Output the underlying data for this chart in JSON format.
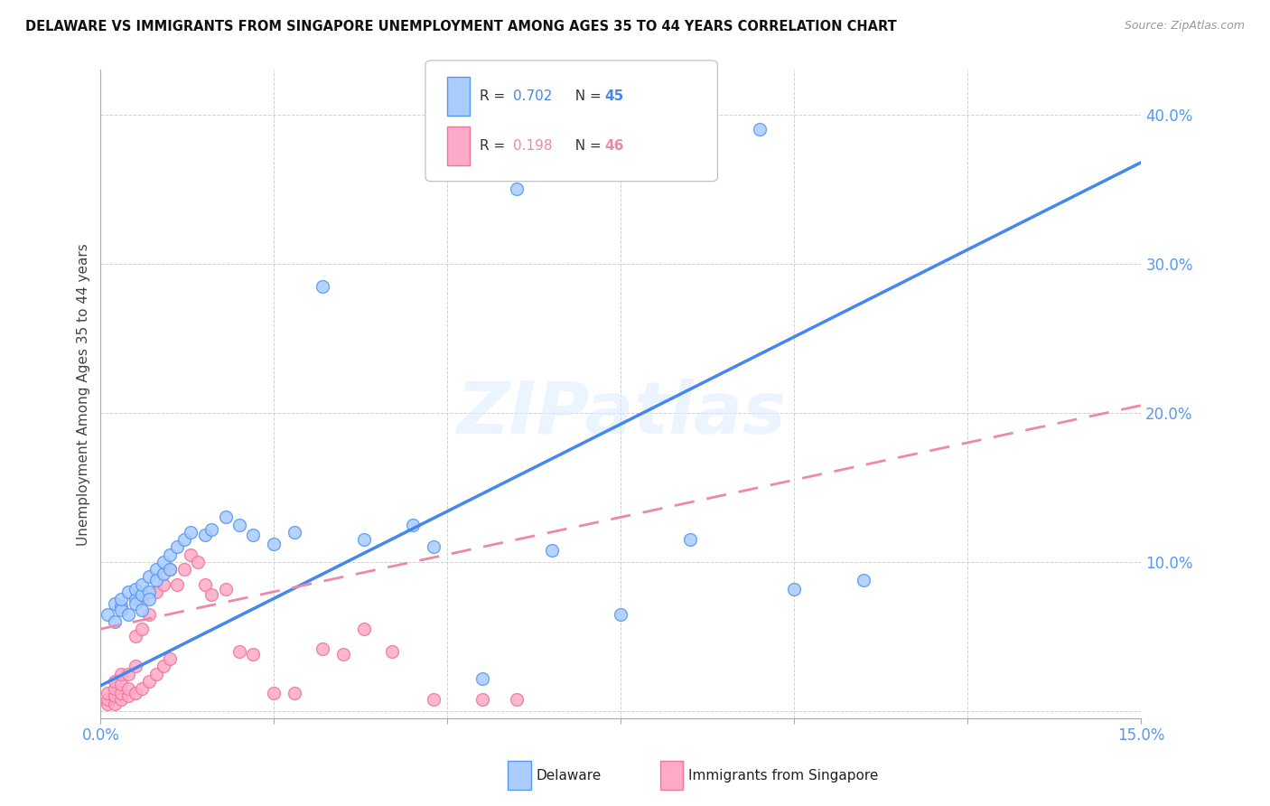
{
  "title": "DELAWARE VS IMMIGRANTS FROM SINGAPORE UNEMPLOYMENT AMONG AGES 35 TO 44 YEARS CORRELATION CHART",
  "source": "Source: ZipAtlas.com",
  "ylabel": "Unemployment Among Ages 35 to 44 years",
  "xlim": [
    0.0,
    0.15
  ],
  "ylim": [
    -0.005,
    0.43
  ],
  "yticks": [
    0.0,
    0.1,
    0.2,
    0.3,
    0.4
  ],
  "ytick_labels": [
    "",
    "10.0%",
    "20.0%",
    "30.0%",
    "40.0%"
  ],
  "xticks": [
    0.0,
    0.025,
    0.05,
    0.075,
    0.1,
    0.125,
    0.15
  ],
  "xtick_labels": [
    "0.0%",
    "",
    "",
    "",
    "",
    "",
    "15.0%"
  ],
  "watermark": "ZIPatlas",
  "delaware_color": "#aaccff",
  "singapore_color": "#ffaac8",
  "delaware_edge_color": "#5599ee",
  "singapore_edge_color": "#ee7799",
  "delaware_line_color": "#4488ee",
  "singapore_line_color": "#ee88aa",
  "tick_color": "#5599ee",
  "legend_r1": "R = ",
  "legend_v1": "0.702",
  "legend_n1_label": "N = ",
  "legend_n1": "45",
  "legend_r2": "R = ",
  "legend_v2": "0.198",
  "legend_n2_label": "N = ",
  "legend_n2": "46",
  "legend_label1": "Delaware",
  "legend_label2": "Immigrants from Singapore",
  "delaware_trend_x": [
    0.0,
    0.15
  ],
  "delaware_trend_y": [
    0.017,
    0.368
  ],
  "singapore_trend_x": [
    0.0,
    0.15
  ],
  "singapore_trend_y": [
    0.055,
    0.205
  ],
  "delaware_scatter_x": [
    0.001,
    0.002,
    0.002,
    0.003,
    0.003,
    0.003,
    0.004,
    0.004,
    0.005,
    0.005,
    0.005,
    0.006,
    0.006,
    0.006,
    0.007,
    0.007,
    0.007,
    0.008,
    0.008,
    0.009,
    0.009,
    0.01,
    0.01,
    0.011,
    0.012,
    0.013,
    0.015,
    0.016,
    0.018,
    0.02,
    0.022,
    0.025,
    0.028,
    0.032,
    0.038,
    0.045,
    0.048,
    0.055,
    0.06,
    0.065,
    0.075,
    0.085,
    0.095,
    0.1,
    0.11
  ],
  "delaware_scatter_y": [
    0.065,
    0.06,
    0.072,
    0.07,
    0.068,
    0.075,
    0.065,
    0.08,
    0.075,
    0.082,
    0.072,
    0.078,
    0.085,
    0.068,
    0.08,
    0.09,
    0.075,
    0.095,
    0.088,
    0.092,
    0.1,
    0.095,
    0.105,
    0.11,
    0.115,
    0.12,
    0.118,
    0.122,
    0.13,
    0.125,
    0.118,
    0.112,
    0.12,
    0.285,
    0.115,
    0.125,
    0.11,
    0.022,
    0.35,
    0.108,
    0.065,
    0.115,
    0.39,
    0.082,
    0.088
  ],
  "singapore_scatter_x": [
    0.001,
    0.001,
    0.001,
    0.002,
    0.002,
    0.002,
    0.002,
    0.003,
    0.003,
    0.003,
    0.003,
    0.004,
    0.004,
    0.004,
    0.005,
    0.005,
    0.005,
    0.006,
    0.006,
    0.006,
    0.007,
    0.007,
    0.008,
    0.008,
    0.009,
    0.009,
    0.01,
    0.01,
    0.011,
    0.012,
    0.013,
    0.014,
    0.015,
    0.016,
    0.018,
    0.02,
    0.022,
    0.025,
    0.028,
    0.032,
    0.035,
    0.038,
    0.042,
    0.048,
    0.055,
    0.06
  ],
  "singapore_scatter_y": [
    0.005,
    0.008,
    0.012,
    0.005,
    0.01,
    0.015,
    0.02,
    0.008,
    0.012,
    0.018,
    0.025,
    0.01,
    0.015,
    0.025,
    0.012,
    0.03,
    0.05,
    0.015,
    0.055,
    0.075,
    0.02,
    0.065,
    0.025,
    0.08,
    0.03,
    0.085,
    0.035,
    0.095,
    0.085,
    0.095,
    0.105,
    0.1,
    0.085,
    0.078,
    0.082,
    0.04,
    0.038,
    0.012,
    0.012,
    0.042,
    0.038,
    0.055,
    0.04,
    0.008,
    0.008,
    0.008
  ]
}
